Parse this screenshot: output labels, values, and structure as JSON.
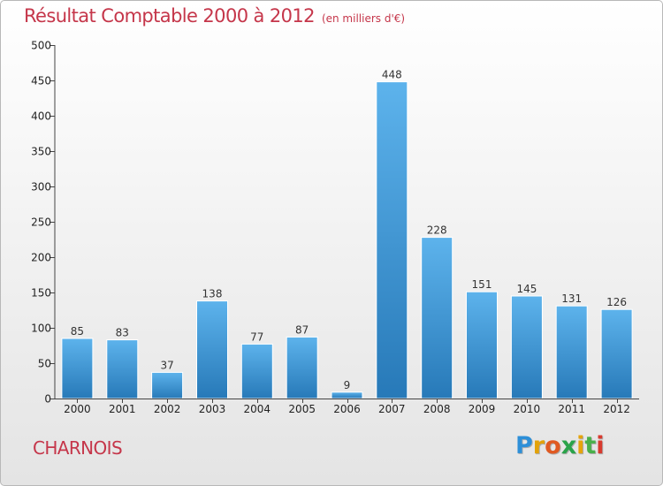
{
  "header": {
    "title": "Résultat Comptable 2000 à 2012",
    "subtitle": "(en milliers d'€)"
  },
  "footer": {
    "town": "CHARNOIS",
    "logo": [
      "P",
      "r",
      "o",
      "x",
      "i",
      "t",
      "i"
    ],
    "logo_colors": [
      "#2d8fd8",
      "#e2a20a",
      "#e05a22",
      "#2aa34a",
      "#e6a40c",
      "#49b04a",
      "#d83a2e"
    ]
  },
  "colors": {
    "bar_top": "#5db3ec",
    "bar_bottom": "#2779b8",
    "axis": "#444444",
    "text": "#c5364a"
  },
  "chart_data": {
    "type": "bar",
    "title": "Résultat Comptable 2000 à 2012",
    "subtitle": "(en milliers d'€)",
    "categories": [
      "2000",
      "2001",
      "2002",
      "2003",
      "2004",
      "2005",
      "2006",
      "2007",
      "2008",
      "2009",
      "2010",
      "2011",
      "2012"
    ],
    "values": [
      85,
      83,
      37,
      138,
      77,
      87,
      9,
      448,
      228,
      151,
      145,
      131,
      126
    ],
    "yticks": [
      0,
      50,
      100,
      150,
      200,
      250,
      300,
      350,
      400,
      450,
      500
    ],
    "ylim": [
      0,
      500
    ],
    "xlabel": "",
    "ylabel": ""
  }
}
